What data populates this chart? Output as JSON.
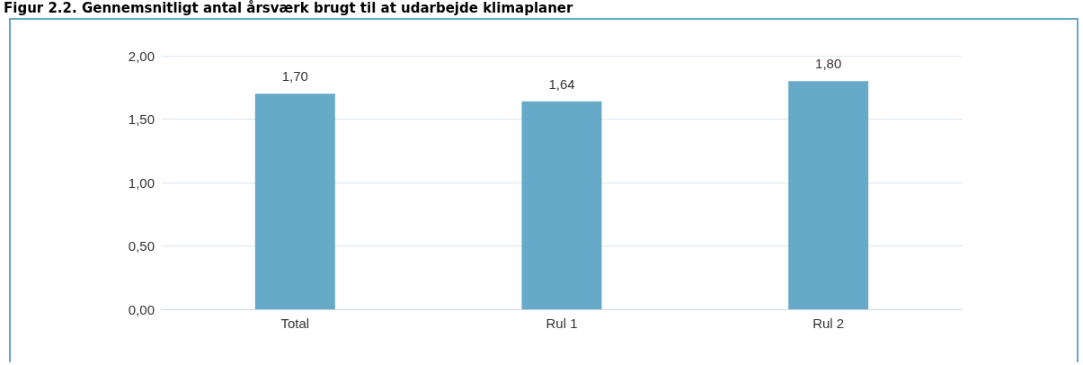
{
  "chart_data": {
    "type": "bar",
    "title": "Figur 2.2. Gennemsnitligt antal årsværk brugt til at udarbejde klimaplaner",
    "categories": [
      "Total",
      "Rul 1",
      "Rul 2"
    ],
    "series": [
      {
        "color": "#67a9c9",
        "values": [
          1.7,
          1.64,
          1.8
        ],
        "value_labels": [
          "1,70",
          "1,64",
          "1,80"
        ]
      }
    ],
    "ylim": [
      0,
      2
    ],
    "yticks": [
      {
        "value": 0,
        "label": "0,00"
      },
      {
        "value": 0.5,
        "label": "0,50"
      },
      {
        "value": 1,
        "label": "1,00"
      },
      {
        "value": 1.5,
        "label": "1,50"
      },
      {
        "value": 2,
        "label": "2,00"
      }
    ],
    "grid": "y"
  }
}
